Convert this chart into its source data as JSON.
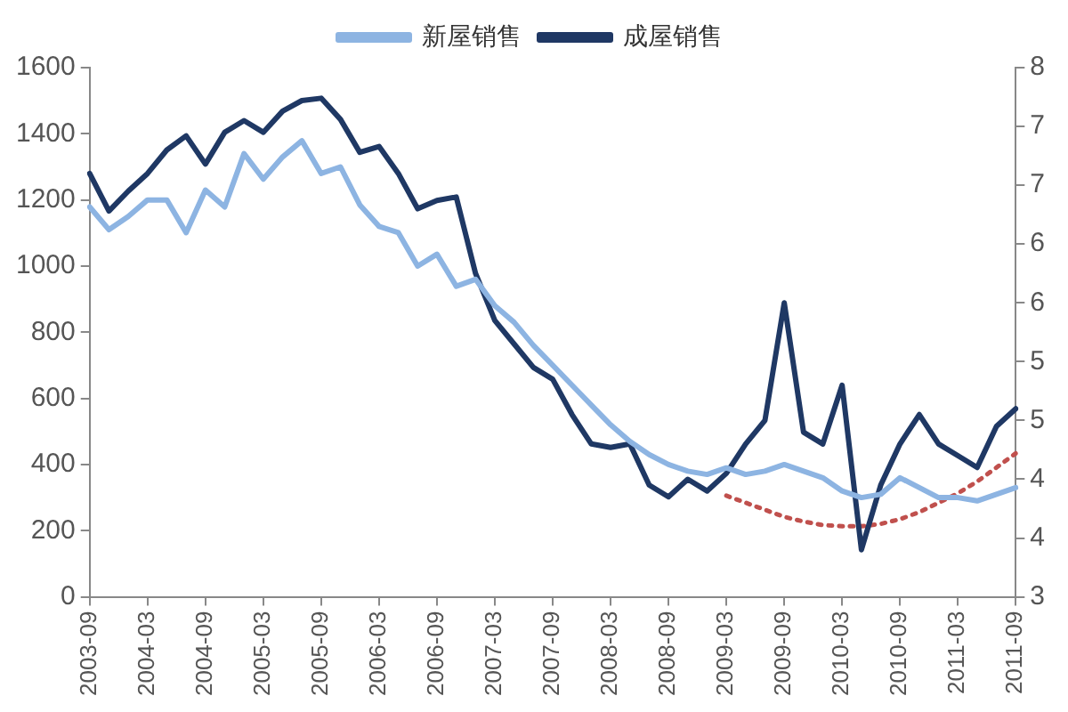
{
  "chart_data": {
    "type": "line",
    "categories": [
      "2003-09",
      null,
      null,
      "2004-03",
      null,
      null,
      "2004-09",
      null,
      null,
      "2005-03",
      null,
      null,
      "2005-09",
      null,
      null,
      "2006-03",
      null,
      null,
      "2006-09",
      null,
      null,
      "2007-03",
      null,
      null,
      "2007-09",
      null,
      null,
      "2008-03",
      null,
      null,
      "2008-09",
      null,
      null,
      "2009-03",
      null,
      null,
      "2009-09",
      null,
      null,
      "2010-03",
      null,
      null,
      "2010-09",
      null,
      null,
      "2011-03",
      null,
      null,
      "2011-09"
    ],
    "series": [
      {
        "name": "新屋销售",
        "color": "#8db4e2",
        "values": [
          1179,
          1110,
          1150,
          1200,
          1200,
          1101,
          1230,
          1179,
          1340,
          1263,
          1330,
          1379,
          1280,
          1300,
          1185,
          1120,
          1101,
          1000,
          1036,
          939,
          960,
          880,
          830,
          760,
          700,
          640,
          580,
          520,
          470,
          430,
          400,
          380,
          370,
          390,
          370,
          380,
          400,
          380,
          360,
          320,
          300,
          310,
          360,
          330,
          300,
          300,
          290,
          310,
          330
        ]
      },
      {
        "name": "成屋销售",
        "color": "#1f3864",
        "axis": "y2",
        "values": [
          6.6,
          6.28,
          6.45,
          6.6,
          6.8,
          6.92,
          6.68,
          6.95,
          7.05,
          6.95,
          7.13,
          7.22,
          7.24,
          7.06,
          6.78,
          6.83,
          6.6,
          6.3,
          6.37,
          6.4,
          5.75,
          5.35,
          5.15,
          4.95,
          4.85,
          4.55,
          4.3,
          4.27,
          4.3,
          3.95,
          3.85,
          4.0,
          3.9,
          4.05,
          4.3,
          4.5,
          5.5,
          4.4,
          4.3,
          4.8,
          3.4,
          3.95,
          4.3,
          4.55,
          4.3,
          4.2,
          4.1,
          4.45,
          4.6
        ]
      },
      {
        "type": "line",
        "color": "#c0504d",
        "axis": "y2",
        "line_style": "dotted",
        "values": [
          null,
          null,
          null,
          null,
          null,
          null,
          null,
          null,
          null,
          null,
          null,
          null,
          null,
          null,
          null,
          null,
          null,
          null,
          null,
          null,
          null,
          null,
          null,
          null,
          null,
          null,
          null,
          null,
          null,
          null,
          null,
          null,
          null,
          3.86,
          3.8,
          3.74,
          3.68,
          3.64,
          3.61,
          3.6,
          3.6,
          3.62,
          3.66,
          3.72,
          3.8,
          3.88,
          3.98,
          4.1,
          4.22
        ]
      }
    ],
    "ylim": [
      0,
      1600
    ],
    "yticks": [
      0,
      200,
      400,
      600,
      800,
      1000,
      1200,
      1400,
      1600
    ],
    "y2lim": [
      3,
      7.5
    ],
    "y2ticks": [
      3,
      {
        "value": 3.5,
        "label": "4"
      },
      4,
      {
        "value": 4.5,
        "label": "5"
      },
      5,
      {
        "value": 5.5,
        "label": "6"
      },
      6,
      {
        "value": 6.5,
        "label": "7"
      },
      7,
      {
        "value": 7.5,
        "label": "8"
      }
    ],
    "grid": false,
    "legend": "top",
    "marker": "none"
  }
}
